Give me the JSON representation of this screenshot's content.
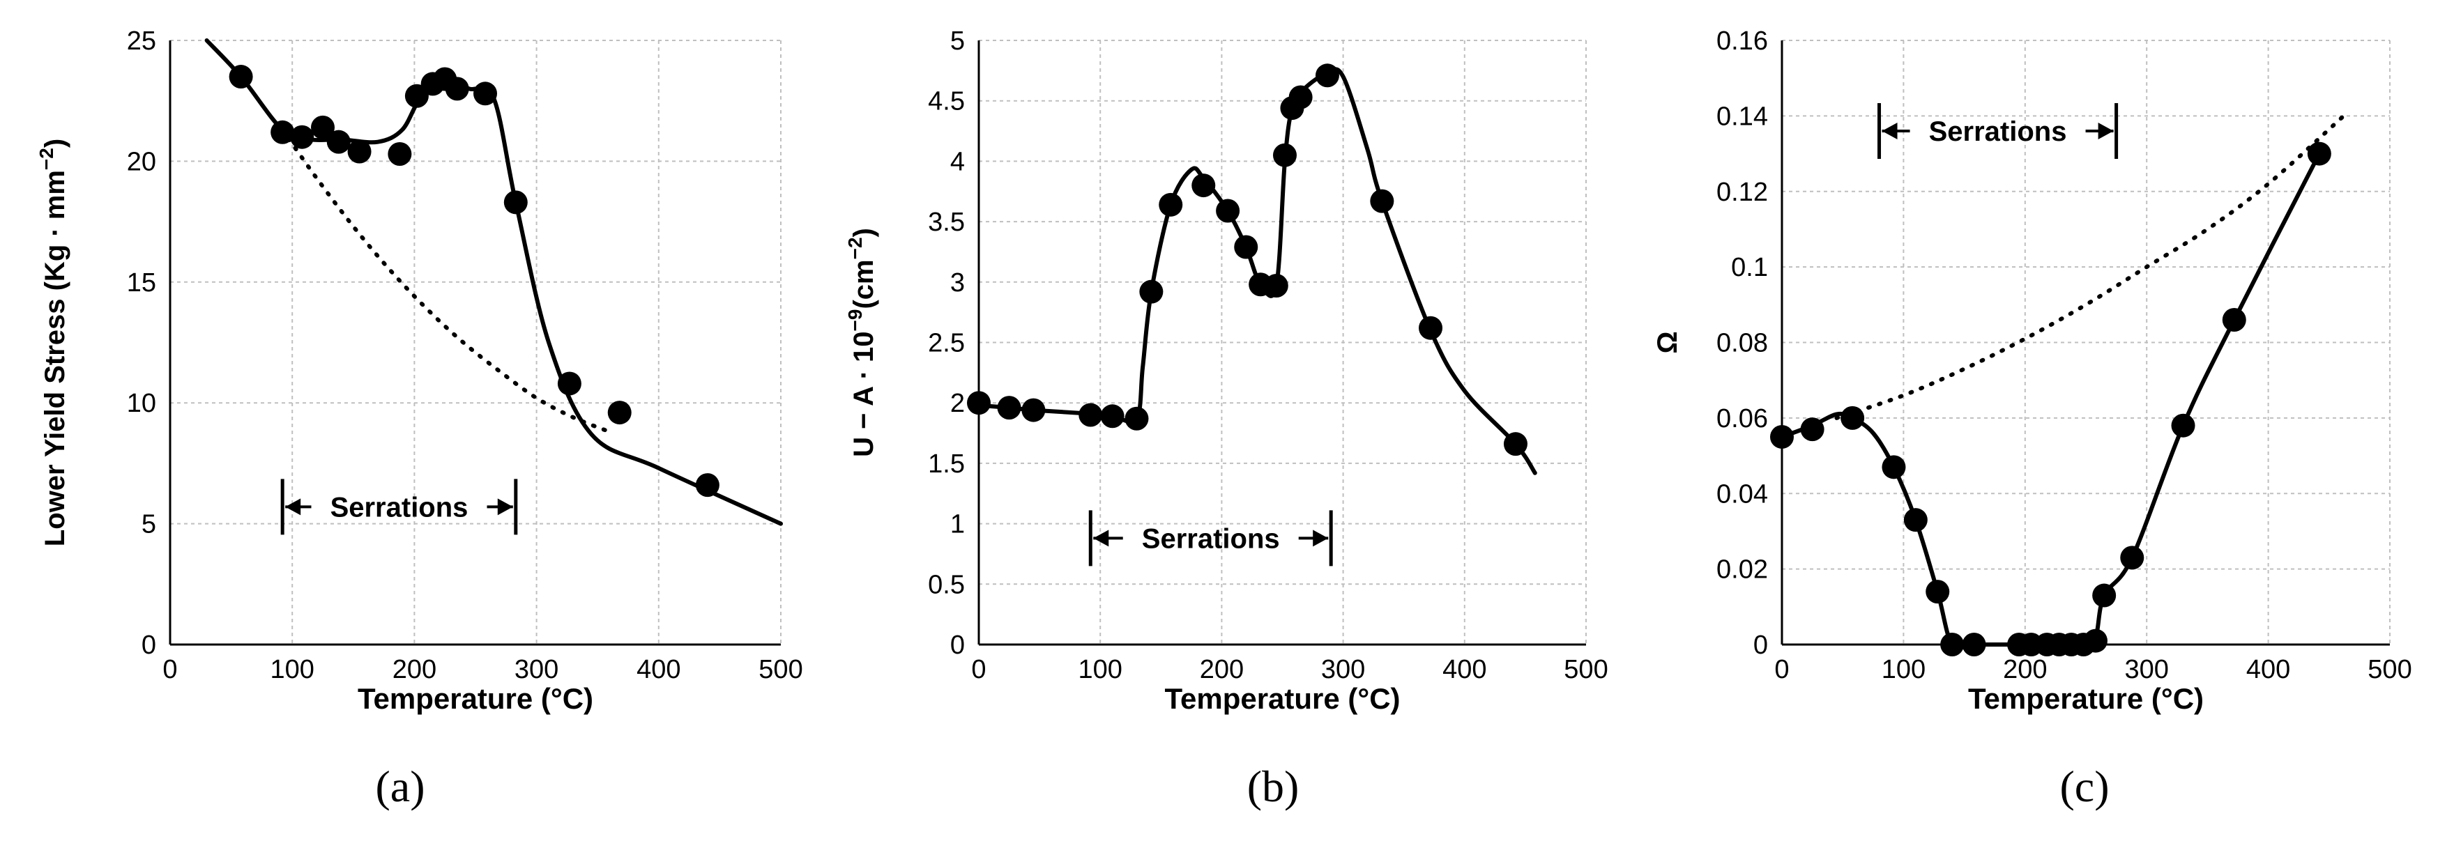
{
  "chart_data": [
    {
      "type": "scatter",
      "panel_label": "(a)",
      "title": "",
      "xlabel": "Temperature (°C)",
      "ylabel": "Lower Yield Stress (Kg · mm",
      "ylabel_sup": "−2",
      "ylabel_close": ")",
      "xlim": [
        0,
        500
      ],
      "ylim": [
        0,
        25
      ],
      "xticks": [
        0,
        100,
        200,
        300,
        400,
        500
      ],
      "yticks": [
        0,
        5,
        10,
        15,
        20,
        25
      ],
      "ytick_labels": [
        "0",
        "5",
        "10",
        "15",
        "20",
        "25"
      ],
      "grid": true,
      "series": [
        {
          "name": "measured",
          "style": "markers",
          "x": [
            58,
            92,
            108,
            125,
            138,
            155,
            188,
            202,
            215,
            225,
            235,
            258,
            283,
            327,
            368,
            440
          ],
          "y": [
            23.5,
            21.2,
            21.0,
            21.4,
            20.8,
            20.4,
            20.3,
            22.7,
            23.2,
            23.4,
            23.0,
            22.8,
            18.3,
            10.8,
            9.6,
            6.6
          ]
        },
        {
          "name": "fit",
          "style": "solid",
          "x": [
            30,
            58,
            92,
            115,
            140,
            170,
            190,
            205,
            225,
            245,
            265,
            283,
            310,
            345,
            400,
            500
          ],
          "y": [
            25.0,
            23.5,
            21.3,
            20.9,
            20.9,
            20.8,
            21.3,
            22.6,
            23.3,
            23.0,
            22.6,
            18.3,
            12.5,
            8.7,
            7.3,
            5.0
          ]
        },
        {
          "name": "extrapolation",
          "style": "dotted",
          "x": [
            92,
            120,
            150,
            180,
            210,
            240,
            270,
            300,
            330,
            360
          ],
          "y": [
            21.3,
            19.3,
            17.3,
            15.5,
            13.9,
            12.5,
            11.3,
            10.2,
            9.4,
            8.8
          ]
        }
      ],
      "annotation": {
        "text": "Serrations",
        "x_start": 92,
        "x_end": 283,
        "y": 5.7
      }
    },
    {
      "type": "scatter",
      "panel_label": "(b)",
      "title": "",
      "xlabel": "Temperature (°C)",
      "ylabel": "U − A · 10",
      "ylabel_sup": "−9",
      "ylabel_mid": "(cm",
      "ylabel_sup2": "−2",
      "ylabel_close": ")",
      "xlim": [
        0,
        500
      ],
      "ylim": [
        0,
        5
      ],
      "xticks": [
        0,
        100,
        200,
        300,
        400,
        500
      ],
      "yticks": [
        0,
        0.5,
        1,
        1.5,
        2,
        2.5,
        3,
        3.5,
        4,
        4.5,
        5
      ],
      "ytick_labels": [
        "0",
        "0.5",
        "1",
        "1.5",
        "2",
        "2.5",
        "3",
        "3.5",
        "4",
        "4.5",
        "5"
      ],
      "grid": true,
      "series": [
        {
          "name": "measured",
          "style": "markers",
          "x": [
            0,
            25,
            45,
            92,
            110,
            130,
            142,
            158,
            185,
            205,
            220,
            232,
            245,
            252,
            258,
            265,
            287,
            332,
            372,
            442
          ],
          "y": [
            2.0,
            1.96,
            1.94,
            1.9,
            1.89,
            1.87,
            2.92,
            3.64,
            3.8,
            3.59,
            3.29,
            2.98,
            2.97,
            4.05,
            4.44,
            4.53,
            4.71,
            3.67,
            2.62,
            1.66
          ]
        },
        {
          "name": "fit",
          "style": "solid",
          "x": [
            0,
            25,
            45,
            92,
            110,
            130,
            135,
            142,
            158,
            175,
            185,
            205,
            220,
            232,
            245,
            252,
            258,
            268,
            287,
            300,
            320,
            332,
            372,
            400,
            442,
            458
          ],
          "y": [
            1.98,
            1.96,
            1.94,
            1.91,
            1.89,
            1.87,
            2.3,
            2.92,
            3.64,
            3.93,
            3.86,
            3.59,
            3.29,
            2.98,
            2.97,
            4.0,
            4.44,
            4.6,
            4.73,
            4.7,
            4.1,
            3.67,
            2.6,
            2.1,
            1.66,
            1.42
          ]
        }
      ],
      "annotation": {
        "text": "Serrations",
        "x_start": 92,
        "x_end": 290,
        "y": 0.88
      }
    },
    {
      "type": "scatter",
      "panel_label": "(c)",
      "title": "",
      "xlabel": "Temperature (°C)",
      "ylabel": "Ω",
      "xlim": [
        0,
        500
      ],
      "ylim": [
        0,
        0.16
      ],
      "xticks": [
        0,
        100,
        200,
        300,
        400,
        500
      ],
      "yticks": [
        0,
        0.02,
        0.04,
        0.06,
        0.08,
        0.1,
        0.12,
        0.14,
        0.16
      ],
      "ytick_labels": [
        "0",
        "0.02",
        "0.04",
        "0.06",
        "0.08",
        "0.1",
        "0.12",
        "0.14",
        "0.16"
      ],
      "grid": true,
      "series": [
        {
          "name": "measured",
          "style": "markers",
          "x": [
            0,
            25,
            58,
            92,
            110,
            128,
            140,
            158,
            195,
            205,
            218,
            228,
            238,
            248,
            258,
            265,
            288,
            330,
            372,
            442
          ],
          "y": [
            0.055,
            0.057,
            0.06,
            0.047,
            0.033,
            0.014,
            0.0,
            0.0,
            0.0,
            0.0,
            0.0,
            0.0,
            0.0,
            0.0,
            0.001,
            0.013,
            0.023,
            0.058,
            0.086,
            0.13
          ]
        },
        {
          "name": "fit",
          "style": "solid",
          "x": [
            0,
            25,
            45,
            58,
            75,
            92,
            110,
            128,
            140,
            158,
            195,
            248,
            258,
            265,
            288,
            330,
            372,
            442
          ],
          "y": [
            0.055,
            0.058,
            0.061,
            0.06,
            0.056,
            0.047,
            0.033,
            0.014,
            0.0,
            0.0,
            0.0,
            0.0,
            0.002,
            0.013,
            0.023,
            0.058,
            0.086,
            0.13
          ]
        },
        {
          "name": "extrapolation",
          "style": "dotted",
          "x": [
            45,
            100,
            150,
            200,
            250,
            300,
            350,
            400,
            462
          ],
          "y": [
            0.06,
            0.066,
            0.073,
            0.081,
            0.09,
            0.1,
            0.11,
            0.122,
            0.14
          ]
        }
      ],
      "annotation": {
        "text": "Serrations",
        "x_start": 80,
        "x_end": 275,
        "y": 0.136
      }
    }
  ]
}
